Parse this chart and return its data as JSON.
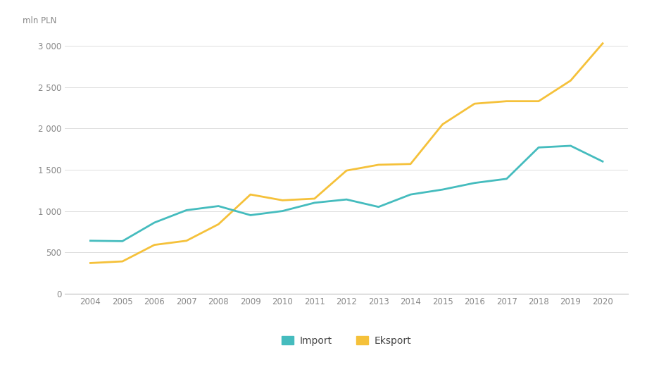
{
  "years": [
    2004,
    2005,
    2006,
    2007,
    2008,
    2009,
    2010,
    2011,
    2012,
    2013,
    2014,
    2015,
    2016,
    2017,
    2018,
    2019,
    2020
  ],
  "import_values": [
    640,
    635,
    860,
    1010,
    1060,
    950,
    1000,
    1100,
    1140,
    1050,
    1200,
    1260,
    1340,
    1390,
    1770,
    1790,
    1600
  ],
  "eksport_values": [
    370,
    390,
    590,
    640,
    840,
    1200,
    1130,
    1150,
    1490,
    1560,
    1570,
    2050,
    2300,
    2330,
    2330,
    2580,
    3030
  ],
  "import_color": "#45BCBE",
  "eksport_color": "#F5C13A",
  "ylabel": "mln PLN",
  "ylim": [
    0,
    3200
  ],
  "yticks": [
    0,
    500,
    1000,
    1500,
    2000,
    2500,
    3000
  ],
  "background_color": "#FFFFFF",
  "grid_color": "#DDDDDD",
  "tick_color": "#888888",
  "legend_labels": [
    "Import",
    "Eksport"
  ],
  "line_width": 2.0
}
